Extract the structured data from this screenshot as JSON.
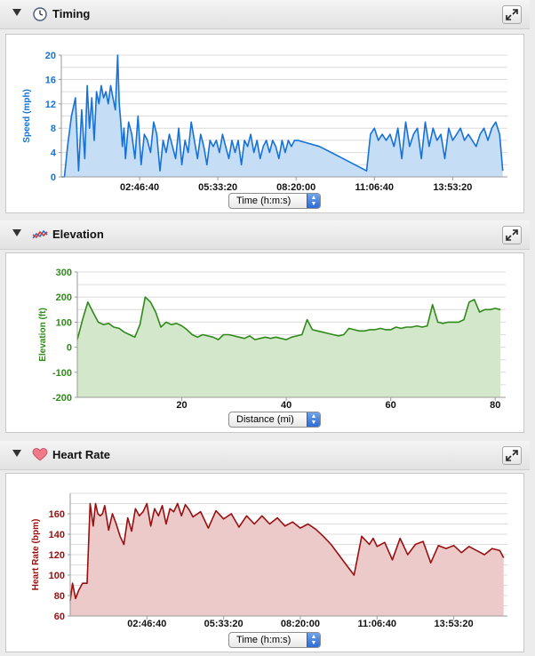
{
  "panels": [
    {
      "id": "timing",
      "title": "Timing",
      "icon": "clock-icon",
      "x_select": "Time (h:m:s)",
      "color": "#1672d6",
      "fill": "#c6ddf6"
    },
    {
      "id": "elevation",
      "title": "Elevation",
      "icon": "elevation-graph-icon",
      "x_select": "Distance (mi)",
      "color": "#2f8a1a",
      "fill": "#d3e8cb"
    },
    {
      "id": "heartrate",
      "title": "Heart Rate",
      "icon": "heart-icon",
      "x_select": "Time (h:m:s)",
      "color": "#9a0f0f",
      "fill": "#eccaca"
    }
  ],
  "chart_data": [
    {
      "type": "area",
      "ylabel": "Speed (mph)",
      "xlabel": "Time (h:m:s)",
      "ylim": [
        0,
        20
      ],
      "yticks": [
        0,
        4,
        8,
        12,
        16,
        20
      ],
      "xlim": [
        0,
        57000
      ],
      "xticks": [
        10000,
        20000,
        30000,
        40000,
        50000
      ],
      "xtick_labels": [
        "02:46:40",
        "05:33:20",
        "08:20:00",
        "11:06:40",
        "13:53:20"
      ],
      "grid": true,
      "x": [
        0,
        400,
        800,
        1300,
        1800,
        2200,
        2600,
        3000,
        3300,
        3600,
        3900,
        4200,
        4500,
        4800,
        5100,
        5400,
        5700,
        6000,
        6300,
        6600,
        6900,
        7200,
        7400,
        7600,
        7800,
        8000,
        8200,
        8600,
        9000,
        9400,
        9800,
        10200,
        10600,
        11000,
        11400,
        11800,
        12200,
        12600,
        13000,
        13400,
        13800,
        14200,
        14600,
        15000,
        15400,
        15800,
        16200,
        16600,
        17000,
        17400,
        17800,
        18200,
        18600,
        19000,
        19400,
        19800,
        20200,
        20600,
        21000,
        21400,
        21800,
        22200,
        22600,
        23000,
        23400,
        23800,
        24200,
        24600,
        25000,
        25400,
        25800,
        26200,
        26600,
        27000,
        27400,
        27800,
        28200,
        28600,
        29000,
        29400,
        29800,
        30200,
        33000,
        36000,
        39000,
        39500,
        40000,
        40500,
        41000,
        41500,
        42000,
        42500,
        43000,
        43500,
        44000,
        44500,
        45000,
        45500,
        46000,
        46500,
        47000,
        47500,
        48000,
        48500,
        49000,
        49500,
        50000,
        50500,
        51000,
        51500,
        52000,
        52500,
        53000,
        53500,
        54000,
        54500,
        55000,
        55500,
        56000,
        56400
      ],
      "y": [
        0,
        0,
        5,
        10,
        13,
        1,
        11,
        3,
        15,
        8,
        13,
        6,
        14,
        12,
        15,
        13,
        14,
        12,
        15,
        13,
        11,
        20,
        12,
        9,
        5,
        8,
        3,
        9,
        7,
        3,
        10,
        2,
        7,
        6,
        4,
        9,
        7,
        1,
        6,
        4,
        7,
        5,
        3,
        8,
        2,
        6,
        4,
        9,
        6,
        3,
        7,
        5,
        2,
        6,
        5,
        6,
        4,
        7,
        5,
        3,
        6,
        4,
        6,
        2,
        6,
        5,
        7,
        4,
        6,
        3,
        5,
        6,
        4,
        6,
        5,
        3,
        6,
        4,
        6,
        5,
        6,
        6,
        5,
        3,
        1,
        7,
        8,
        6,
        7,
        6,
        7,
        5,
        8,
        3,
        9,
        5,
        7,
        8,
        3,
        9,
        5,
        8,
        6,
        7,
        3,
        8,
        6,
        7,
        8,
        6,
        7,
        6,
        5,
        7,
        8,
        6,
        8,
        9,
        7,
        1
      ],
      "ytick_spacing": 4
    },
    {
      "type": "area",
      "ylabel": "Elevation (ft)",
      "xlabel": "Distance (mi)",
      "ylim": [
        -200,
        300
      ],
      "yticks": [
        -200,
        -100,
        0,
        100,
        200,
        300
      ],
      "xlim": [
        0,
        82
      ],
      "xticks": [
        20,
        40,
        60,
        80
      ],
      "xtick_labels": [
        "20",
        "40",
        "60",
        "80"
      ],
      "grid": true,
      "x": [
        0,
        1,
        2,
        3,
        4,
        5,
        6,
        7,
        8,
        9,
        10,
        11,
        12,
        13,
        14,
        15,
        16,
        17,
        18,
        19,
        20,
        21,
        22,
        23,
        24,
        25,
        26,
        27,
        28,
        29,
        30,
        31,
        32,
        33,
        34,
        35,
        36,
        37,
        38,
        39,
        40,
        41,
        42,
        43,
        44,
        45,
        46,
        47,
        48,
        49,
        50,
        51,
        52,
        53,
        54,
        55,
        56,
        57,
        58,
        59,
        60,
        61,
        62,
        63,
        64,
        65,
        66,
        67,
        68,
        69,
        70,
        71,
        72,
        73,
        74,
        75,
        76,
        77,
        78,
        79,
        80,
        81
      ],
      "y": [
        30,
        110,
        180,
        140,
        100,
        90,
        95,
        80,
        75,
        60,
        50,
        40,
        90,
        200,
        180,
        140,
        80,
        100,
        90,
        95,
        85,
        70,
        50,
        40,
        50,
        45,
        40,
        30,
        50,
        50,
        45,
        40,
        35,
        45,
        30,
        35,
        40,
        35,
        40,
        35,
        30,
        40,
        45,
        50,
        110,
        70,
        65,
        60,
        55,
        50,
        45,
        50,
        75,
        70,
        65,
        65,
        70,
        70,
        75,
        70,
        70,
        80,
        75,
        80,
        80,
        85,
        80,
        85,
        170,
        100,
        95,
        100,
        100,
        100,
        110,
        180,
        190,
        140,
        150,
        150,
        155,
        150
      ],
      "ytick_spacing": 100
    },
    {
      "type": "area",
      "ylabel": "Heart Rate (bpm)",
      "xlabel": "Time (h:m:s)",
      "ylim": [
        60,
        180
      ],
      "yticks": [
        60,
        80,
        100,
        120,
        140,
        160
      ],
      "xlim": [
        0,
        57000
      ],
      "xticks": [
        10000,
        20000,
        30000,
        40000,
        50000
      ],
      "xtick_labels": [
        "02:46:40",
        "05:33:20",
        "08:20:00",
        "11:06:40",
        "13:53:20"
      ],
      "grid": true,
      "x": [
        0,
        300,
        700,
        1100,
        1600,
        2200,
        2600,
        3000,
        3300,
        3600,
        3900,
        4200,
        4500,
        5000,
        5500,
        6000,
        6500,
        7000,
        7500,
        8000,
        8500,
        9000,
        9500,
        10000,
        10500,
        11000,
        11500,
        12000,
        12500,
        13000,
        13500,
        14000,
        14500,
        15000,
        15500,
        16000,
        17000,
        18000,
        19000,
        20000,
        21000,
        22000,
        23000,
        24000,
        25000,
        26000,
        27000,
        28000,
        29000,
        30000,
        31000,
        32000,
        33000,
        34000,
        35000,
        36000,
        37000,
        38000,
        39000,
        39500,
        40000,
        41000,
        42000,
        43000,
        44000,
        45000,
        46000,
        47000,
        48000,
        49000,
        50000,
        51000,
        52000,
        53000,
        54000,
        55000,
        56000,
        56500
      ],
      "y": [
        75,
        92,
        77,
        85,
        92,
        92,
        170,
        148,
        170,
        160,
        158,
        160,
        168,
        144,
        160,
        150,
        138,
        130,
        156,
        143,
        165,
        158,
        162,
        170,
        148,
        165,
        158,
        168,
        150,
        165,
        162,
        170,
        158,
        169,
        164,
        157,
        162,
        146,
        163,
        155,
        160,
        147,
        158,
        150,
        158,
        150,
        156,
        148,
        152,
        146,
        150,
        145,
        138,
        130,
        120,
        110,
        100,
        138,
        130,
        136,
        128,
        132,
        115,
        136,
        120,
        130,
        133,
        112,
        129,
        126,
        129,
        122,
        128,
        124,
        120,
        126,
        124,
        117
      ],
      "ytick_spacing": 20
    }
  ]
}
